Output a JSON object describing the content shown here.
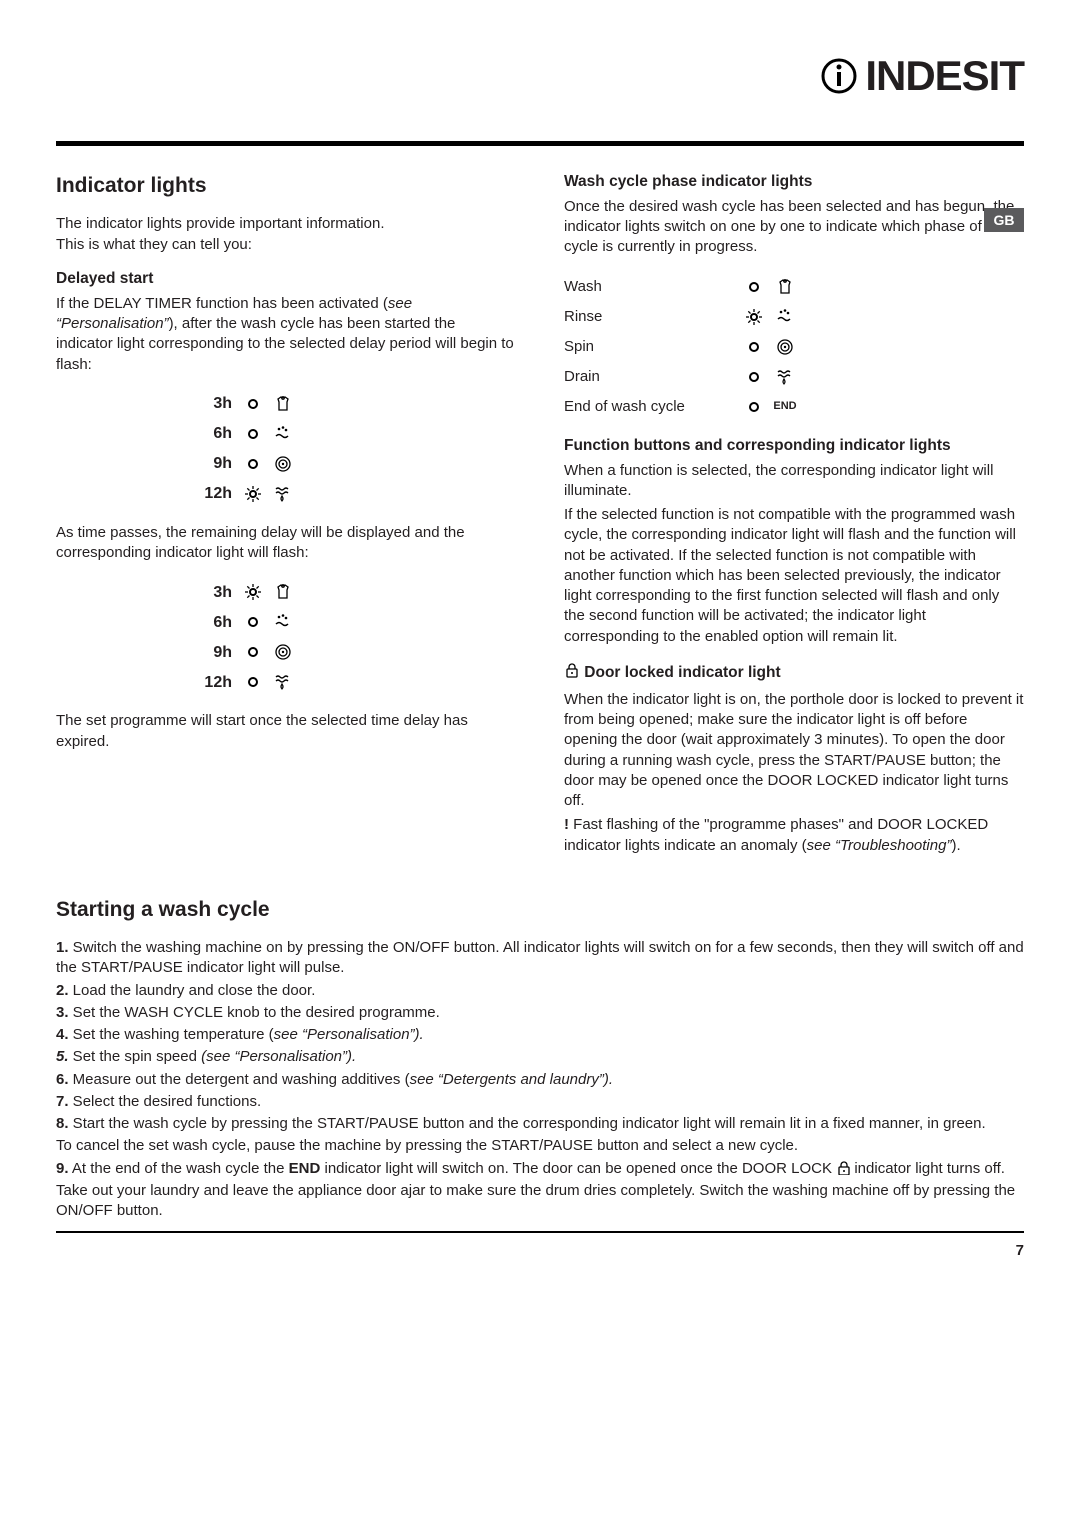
{
  "brand": "INDESIT",
  "tab": "GB",
  "pagenum": "7",
  "left": {
    "h": "Indicator lights",
    "intro": "The indicator lights provide important information.\nThis is what they can tell you:",
    "delayed_h": "Delayed start",
    "delayed_p": "If the DELAY TIMER function has been activated (see “Personalisation”), after the wash cycle has been started the indicator light corresponding to the selected delay period will begin to flash:",
    "delayed_p_pre": "If the DELAY TIMER function has been activated (",
    "delayed_p_it": "see “Personalisation”",
    "delayed_p_post": "), after the wash cycle has been started the indicator light corresponding to the selected delay period will begin to flash:",
    "rows1": [
      {
        "h": "3h",
        "flash": false,
        "icon": "wash"
      },
      {
        "h": "6h",
        "flash": false,
        "icon": "rinse"
      },
      {
        "h": "9h",
        "flash": false,
        "icon": "spin"
      },
      {
        "h": "12h",
        "flash": true,
        "icon": "drain"
      }
    ],
    "mid": "As time passes, the remaining delay will be displayed and the corresponding indicator light will flash:",
    "rows2": [
      {
        "h": "3h",
        "flash": true,
        "icon": "wash"
      },
      {
        "h": "6h",
        "flash": false,
        "icon": "rinse"
      },
      {
        "h": "9h",
        "flash": false,
        "icon": "spin"
      },
      {
        "h": "12h",
        "flash": false,
        "icon": "drain"
      }
    ],
    "end": "The set programme will start once the selected time delay has expired."
  },
  "right": {
    "wcp_h": "Wash cycle phase indicator lights",
    "wcp_p": "Once the desired wash cycle has been selected and has begun, the indicator lights switch on one by one to indicate which phase of the cycle is currently in progress.",
    "phases": [
      {
        "label": "Wash",
        "flash": false,
        "icon": "wash"
      },
      {
        "label": "Rinse",
        "flash": true,
        "icon": "rinse"
      },
      {
        "label": "Spin",
        "flash": false,
        "icon": "spin"
      },
      {
        "label": "Drain",
        "flash": false,
        "icon": "drain"
      },
      {
        "label": "End of wash cycle",
        "flash": false,
        "icon": "end"
      }
    ],
    "fb_h": "Function buttons and corresponding indicator lights",
    "fb_p1": "When a function is selected, the corresponding indicator light will illuminate.",
    "fb_p2": "If the selected function is not compatible with the programmed wash cycle, the corresponding indicator light will flash and the function will not be activated. If the selected function is not compatible with another function which has been selected previously, the indicator light corresponding to the first function selected will flash and only the second function will be activated; the indicator light corresponding to the enabled option will remain lit.",
    "door_h": " Door locked indicator light",
    "door_p1": "When the indicator light is on, the porthole door is locked to prevent it from being opened; make sure the indicator light is off before opening the door (wait approximately 3 minutes). To open the door during a running wash cycle, press the START/PAUSE button; the door may be opened once the DOOR LOCKED indicator light turns off.",
    "door_warn_pre": " Fast flashing of the \"programme phases\" and DOOR LOCKED indicator lights indicate an anomaly (",
    "door_warn_it": "see “Troubleshooting”",
    "door_warn_post": ")."
  },
  "start": {
    "h": "Starting a wash cycle",
    "s1": " Switch the washing machine on by pressing the ON/OFF button. All indicator lights will switch on for a few seconds, then they will switch off and the START/PAUSE indicator light will pulse.",
    "s2": " Load the laundry and close the door.",
    "s3": " Set the WASH CYCLE knob to the desired programme.",
    "s4_pre": " Set the washing temperature (",
    "s4_it": "see “Personalisation”).",
    "s5_pre": " Set the spin speed ",
    "s5_it": "(see “Personalisation”).",
    "s6_pre": " Measure out the detergent and washing additives (",
    "s6_it": "see “Detergents and laundry”).",
    "s7": " Select the desired functions.",
    "s8": " Start the wash cycle by pressing the START/PAUSE button and the corresponding indicator light will remain lit in a fixed manner, in green.",
    "s8b": "To cancel the set wash cycle, pause the machine by pressing the START/PAUSE button and select a new cycle.",
    "s9_pre": " At the end of the wash cycle the ",
    "s9_end": "END",
    "s9_mid": " indicator light will switch on. The door can be opened once the DOOR LOCK ",
    "s9_post": " indicator light turns off. Take out your laundry and leave the appliance door ajar to make sure the drum dries completely. Switch the washing machine off by pressing the ON/OFF button."
  }
}
